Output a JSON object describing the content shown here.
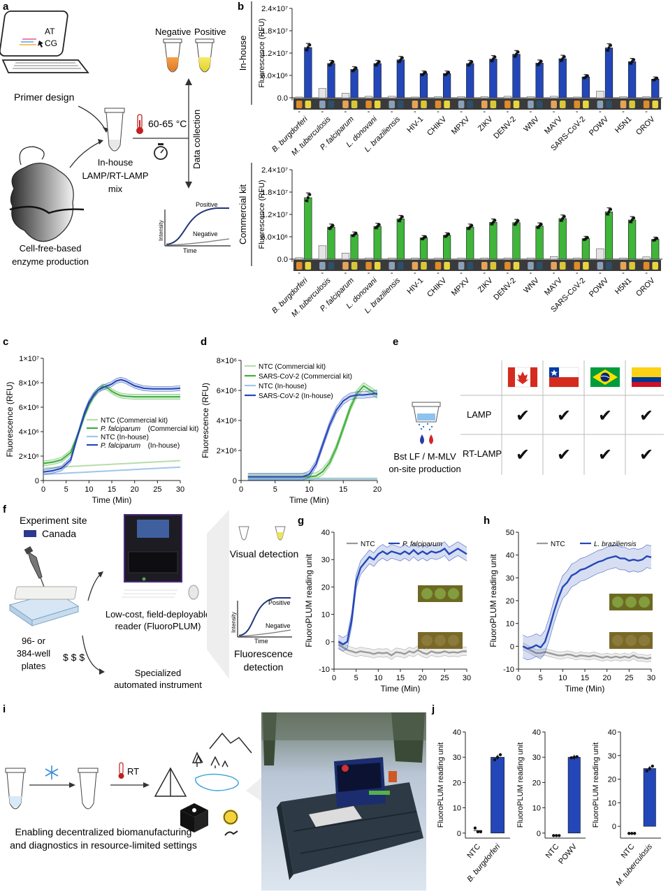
{
  "panel_labels": [
    "a",
    "b",
    "c",
    "d",
    "e",
    "f",
    "g",
    "h",
    "i",
    "j"
  ],
  "panel_a": {
    "screen_text": [
      "AT",
      "CG"
    ],
    "primer_design": "Primer design",
    "tube_negative": "Negative",
    "tube_positive": "Positive",
    "temperature": "60-65 °C",
    "data_collection": "Data collection",
    "mix_lines": [
      "In-house",
      "LAMP/RT-LAMP",
      "mix"
    ],
    "cell_free_lines": [
      "Cell-free-based",
      "enzyme production"
    ],
    "curve_positive": "Positive",
    "curve_negative": "Negative",
    "curve_ylabel": "Intensity",
    "curve_xlabel": "Time"
  },
  "panel_e": {
    "reagent_lines": [
      "Bst LF / M-MLV",
      "on-site production"
    ],
    "rows": [
      "LAMP",
      "RT-LAMP"
    ],
    "flags": [
      "canada-flag-icon",
      "chile-flag-icon",
      "brazil-flag-icon",
      "colombia-flag-icon"
    ],
    "check": "✔"
  },
  "panel_f": {
    "site_title": "Experiment site",
    "site_name": "Canada",
    "site_color": "#2b3a8c",
    "plates_lines": [
      "96- or",
      "384-well",
      "plates"
    ],
    "cost_low": "$",
    "cost_high": "$ $ $",
    "reader_lines": [
      "Low-cost, field-deployable",
      "reader (FluoroPLUM)"
    ],
    "instrument_lines": [
      "Specialized",
      "automated instrument"
    ],
    "visual": "Visual detection",
    "fluor_lines": [
      "Fluorescence",
      "detection"
    ],
    "curve_positive": "Positive",
    "curve_negative": "Negative",
    "curve_ylabel": "Intensity",
    "curve_xlabel": "Time"
  },
  "panel_i": {
    "rt": "RT",
    "caption_lines": [
      "Enabling decentralized biomanufacturing",
      "and diagnostics in resource-limited settings"
    ]
  },
  "chart_data": [
    {
      "id": "b-top",
      "type": "bar",
      "side_label": "In-house",
      "ylabel": "Fluorescence (RFU)",
      "yticks": [
        "0.0",
        "6.0×10⁶",
        "1.2×10⁷",
        "1.8×10⁷",
        "2.4×10⁷"
      ],
      "ylim": [
        0,
        24000000
      ],
      "categories": [
        "B. burgdorferi",
        "M. tuberculosis",
        "P. falciparum",
        "L. donovani",
        "L. braziliensis",
        "HIV-1",
        "CHIKV",
        "MPXV",
        "ZIKV",
        "DENV-2",
        "WNV",
        "MAYV",
        "SARS-CoV-2",
        "POWV",
        "H5N1",
        "OROV"
      ],
      "italic_categories": [
        0,
        1,
        2,
        3,
        4
      ],
      "ntc_label": "-",
      "ntc": [
        200000,
        2500000,
        1200000,
        400000,
        400000,
        200000,
        300000,
        300000,
        300000,
        400000,
        300000,
        400000,
        200000,
        1800000,
        300000,
        300000
      ],
      "positive": [
        13500000,
        9200000,
        7600000,
        9200000,
        10200000,
        6500000,
        6500000,
        9200000,
        10400000,
        11700000,
        9300000,
        10500000,
        5600000,
        13400000,
        9700000,
        5000000
      ],
      "colors": {
        "ntc": "#e4e4e4",
        "positive": "#2347b8"
      }
    },
    {
      "id": "b-bottom",
      "type": "bar",
      "side_label": "Commercial kit",
      "ylabel": "Fluorescence (RFU)",
      "yticks": [
        "0.0",
        "6.0×10⁶",
        "1.2×10⁷",
        "1.8×10⁷",
        "2.4×10⁷"
      ],
      "ylim": [
        0,
        24000000
      ],
      "categories": [
        "B. burgdorferi",
        "M. tuberculosis",
        "P. falciparum",
        "L. donovani",
        "L. braziliensis",
        "HIV-1",
        "CHIKV",
        "MPXV",
        "ZIKV",
        "DENV-2",
        "WNV",
        "MAYV",
        "SARS-CoV-2",
        "POWV",
        "H5N1",
        "OROV"
      ],
      "italic_categories": [
        0,
        1,
        2,
        3,
        4
      ],
      "ntc_label": "-",
      "ntc": [
        400000,
        3600000,
        1600000,
        300000,
        300000,
        300000,
        300000,
        300000,
        300000,
        300000,
        300000,
        700000,
        300000,
        2800000,
        300000,
        600000
      ],
      "positive": [
        16500000,
        8600000,
        6600000,
        8800000,
        10800000,
        5700000,
        6400000,
        8600000,
        9900000,
        9800000,
        8900000,
        10900000,
        5500000,
        12700000,
        10500000,
        5300000
      ],
      "colors": {
        "ntc": "#e4e4e4",
        "positive": "#3fb53a"
      }
    },
    {
      "id": "c",
      "type": "line",
      "xlabel": "Time (Min)",
      "ylabel": "Fluorescence (RFU)",
      "xticks": [
        0,
        5,
        10,
        15,
        20,
        25,
        30
      ],
      "xlim": [
        0,
        30
      ],
      "yticks": [
        "0",
        "2×10⁶",
        "4×10⁶",
        "6×10⁶",
        "8×10⁶",
        "1×10⁷"
      ],
      "ylim": [
        0,
        10000000
      ],
      "x": [
        0,
        2,
        4,
        6,
        7,
        8,
        9,
        10,
        11,
        12,
        13,
        14,
        15,
        16,
        17,
        18,
        20,
        22,
        24,
        26,
        28,
        30
      ],
      "series": [
        {
          "name": "NTC (Commercial kit)",
          "italic": "",
          "color": "#b9dcaa",
          "values": [
            1000000,
            1050000,
            1100000,
            1150000,
            1170000,
            1190000,
            1210000,
            1230000,
            1250000,
            1270000,
            1290000,
            1310000,
            1330000,
            1350000,
            1370000,
            1390000,
            1430000,
            1470000,
            1510000,
            1550000,
            1590000,
            1630000
          ]
        },
        {
          "name": " (Commercial kit)",
          "italic": "P. falciparum",
          "color": "#3fae3a",
          "values": [
            1400000,
            1500000,
            1700000,
            2300000,
            3200000,
            4200000,
            5300000,
            6200000,
            6900000,
            7400000,
            7700000,
            7600000,
            7300000,
            7100000,
            6950000,
            6900000,
            6850000,
            6850000,
            6850000,
            6850000,
            6850000,
            6850000
          ]
        },
        {
          "name": "NTC (In-house)",
          "italic": "",
          "color": "#9fc6ea",
          "values": [
            500000,
            540000,
            580000,
            620000,
            640000,
            660000,
            680000,
            700000,
            720000,
            740000,
            760000,
            780000,
            800000,
            820000,
            840000,
            860000,
            900000,
            940000,
            980000,
            1020000,
            1060000,
            1100000
          ]
        },
        {
          "name": " (In-house)",
          "italic": "P. falciparum",
          "color": "#2347b8",
          "values": [
            700000,
            800000,
            1000000,
            1700000,
            3000000,
            4300000,
            5500000,
            6400000,
            7000000,
            7400000,
            7600000,
            7750000,
            7900000,
            8150000,
            8250000,
            8150000,
            7750000,
            7550000,
            7500000,
            7500000,
            7500000,
            7550000
          ]
        }
      ]
    },
    {
      "id": "d",
      "type": "line",
      "xlabel": "Time (Min)",
      "ylabel": "Fluorescence (RFU)",
      "xticks": [
        0,
        5,
        10,
        15,
        20
      ],
      "xlim": [
        0,
        20
      ],
      "yticks": [
        "0",
        "2×10⁶",
        "4×10⁶",
        "6×10⁶",
        "8×10⁶"
      ],
      "ylim": [
        0,
        8000000
      ],
      "x": [
        1,
        3,
        5,
        7,
        9,
        10,
        11,
        12,
        13,
        14,
        15,
        16,
        17,
        18,
        19,
        20
      ],
      "series": [
        {
          "name": "NTC (Commercial kit)",
          "italic": "",
          "color": "#b9dcaa",
          "values": [
            150000,
            150000,
            150000,
            150000,
            150000,
            150000,
            150000,
            150000,
            150000,
            150000,
            150000,
            150000,
            150000,
            150000,
            150000,
            150000
          ]
        },
        {
          "name": "SARS-CoV-2 (Commercial kit)",
          "italic": "",
          "color": "#3fae3a",
          "values": [
            250000,
            250000,
            250000,
            250000,
            250000,
            250000,
            300000,
            600000,
            1200000,
            2200000,
            3500000,
            4800000,
            5800000,
            6300000,
            6000000,
            5700000
          ]
        },
        {
          "name": "NTC (In-house)",
          "italic": "",
          "color": "#9fc6ea",
          "values": [
            100000,
            100000,
            100000,
            100000,
            100000,
            100000,
            100000,
            100000,
            100000,
            100000,
            100000,
            100000,
            100000,
            100000,
            100000,
            100000
          ]
        },
        {
          "name": "SARS-CoV-2 (In-house)",
          "italic": "",
          "color": "#2347b8",
          "values": [
            250000,
            250000,
            250000,
            250000,
            250000,
            400000,
            1100000,
            2400000,
            3700000,
            4700000,
            5300000,
            5600000,
            5700000,
            5700000,
            5750000,
            5800000
          ]
        }
      ]
    },
    {
      "id": "g",
      "type": "line",
      "xlabel": "Time (Min)",
      "ylabel": "FluoroPLUM reading unit",
      "xticks": [
        0,
        5,
        10,
        15,
        20,
        25,
        30
      ],
      "xlim": [
        0,
        30
      ],
      "yticks": [
        -10,
        0,
        10,
        20,
        30,
        40
      ],
      "ylim": [
        -10,
        40
      ],
      "x": [
        1,
        2,
        3,
        4,
        5,
        6,
        7,
        8,
        9,
        10,
        11,
        12,
        13,
        14,
        15,
        16,
        17,
        18,
        19,
        20,
        21,
        22,
        23,
        24,
        25,
        26,
        27,
        28,
        29,
        30
      ],
      "series": [
        {
          "name": "NTC",
          "italic": "",
          "color": "#9a9a9a",
          "values": [
            -1,
            -2,
            -3,
            -3.5,
            -4,
            -3.5,
            -3.8,
            -4,
            -4.5,
            -4,
            -4.2,
            -4,
            -5,
            -3.8,
            -4,
            -4.5,
            -3.5,
            -4,
            -3,
            -4,
            -4.5,
            -3.5,
            -4,
            -4,
            -3.5,
            -4,
            -3.8,
            -4,
            -3.5,
            -3.5
          ]
        },
        {
          "name": "",
          "italic": "P. falciparum",
          "color": "#2347b8",
          "values": [
            0,
            -1,
            0,
            8,
            22,
            27,
            29,
            31,
            30,
            32,
            33,
            32,
            33,
            32.5,
            32,
            33,
            32,
            33.5,
            32,
            33,
            32,
            33,
            32.5,
            33,
            34,
            32,
            33,
            34,
            33,
            32
          ]
        }
      ]
    },
    {
      "id": "h",
      "type": "line",
      "xlabel": "Time (Min)",
      "ylabel": "FluoroPLUM reading unit",
      "xticks": [
        0,
        5,
        10,
        15,
        20,
        25,
        30
      ],
      "xlim": [
        0,
        30
      ],
      "yticks": [
        -10,
        0,
        10,
        20,
        30,
        40,
        50
      ],
      "ylim": [
        -10,
        50
      ],
      "x": [
        1,
        2,
        3,
        4,
        5,
        6,
        7,
        8,
        9,
        10,
        11,
        12,
        13,
        14,
        15,
        16,
        17,
        18,
        19,
        20,
        21,
        22,
        23,
        24,
        25,
        26,
        27,
        28,
        29,
        30
      ],
      "series": [
        {
          "name": "NTC",
          "italic": "",
          "color": "#9a9a9a",
          "values": [
            0,
            -1,
            -2,
            -3,
            -3,
            -2.5,
            -3,
            -3.5,
            -4,
            -4,
            -3.5,
            -3.8,
            -4.5,
            -4,
            -4.2,
            -4.5,
            -4,
            -4.5,
            -5,
            -4.5,
            -5,
            -4.5,
            -5,
            -4.5,
            -5,
            -4,
            -5,
            -5,
            -5.5,
            -5
          ]
        },
        {
          "name": "",
          "italic": "L. braziliensis",
          "color": "#2347b8",
          "values": [
            0,
            -1,
            -0.5,
            0.5,
            -0.5,
            2,
            8,
            15,
            21,
            26,
            28,
            31,
            32,
            33.5,
            34,
            35,
            36,
            37,
            37.5,
            38.5,
            39,
            39.5,
            38.5,
            38.5,
            37.5,
            38,
            37.5,
            38,
            39.5,
            39
          ]
        }
      ]
    },
    {
      "id": "j1",
      "type": "bar",
      "ylabel": "FluoroPLUM reading unit",
      "yticks": [
        0,
        10,
        20,
        30,
        40
      ],
      "ylim": [
        -2,
        40
      ],
      "categories": [
        "NTC",
        "B. burgdorferi"
      ],
      "italic_categories": [
        1
      ],
      "values": [
        1,
        30
      ],
      "points": [
        [
          2,
          0.5,
          0.5
        ],
        [
          29,
          30,
          31
        ]
      ],
      "color": "#2347b8"
    },
    {
      "id": "j2",
      "type": "bar",
      "ylabel": "FluoroPLUM reading unit",
      "yticks": [
        0,
        10,
        20,
        30,
        40
      ],
      "ylim": [
        -2,
        40
      ],
      "categories": [
        "NTC",
        "POWV"
      ],
      "italic_categories": [],
      "values": [
        -1,
        30
      ],
      "points": [
        [
          -1,
          -1,
          -1
        ],
        [
          29.8,
          30,
          30.2
        ]
      ],
      "color": "#2347b8"
    },
    {
      "id": "j3",
      "type": "bar",
      "ylabel": "FluoroPLUM reading unit",
      "yticks": [
        0,
        10,
        20,
        30,
        40
      ],
      "ylim": [
        -5,
        40
      ],
      "categories": [
        "NTC",
        "M. tuberculosis"
      ],
      "italic_categories": [
        1
      ],
      "values": [
        -3,
        24.5
      ],
      "points": [
        [
          -3,
          -3,
          -3
        ],
        [
          23.5,
          24.5,
          25.5
        ]
      ],
      "color": "#2347b8"
    }
  ]
}
